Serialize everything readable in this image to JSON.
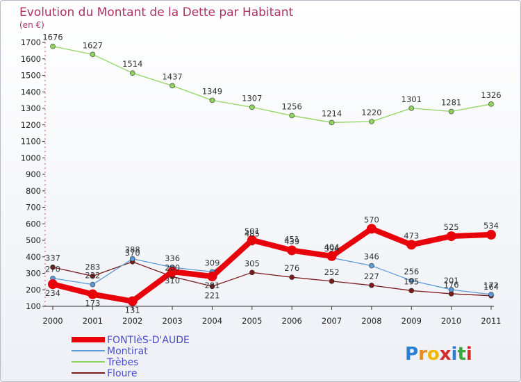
{
  "chart_data": {
    "type": "line",
    "title": "Evolution du Montant de la Dette par Habitant",
    "subtitle": "(en €)",
    "xlabel": "",
    "ylabel": "",
    "x": [
      "2000",
      "2001",
      "2002",
      "2003",
      "2004",
      "2005",
      "2006",
      "2007",
      "2008",
      "2009",
      "2010",
      "2011"
    ],
    "ylim": [
      100,
      1700
    ],
    "yticks": [
      100,
      200,
      300,
      400,
      500,
      600,
      700,
      800,
      900,
      1000,
      1100,
      1200,
      1300,
      1400,
      1500,
      1600,
      1700
    ],
    "grid": false,
    "legend_position": "bottom-left",
    "series": [
      {
        "name": "FONTIèS-D'AUDE",
        "color": "#e8000b",
        "values": [
          234,
          173,
          131,
          310,
          281,
          501,
          439,
          404,
          570,
          473,
          525,
          534
        ],
        "labels_above": [
          false,
          false,
          false,
          false,
          false,
          true,
          true,
          true,
          true,
          true,
          true,
          true
        ]
      },
      {
        "name": "Montirat",
        "color": "#5b9bd5",
        "values": [
          270,
          232,
          388,
          336,
          309,
          485,
          451,
          394,
          346,
          256,
          201,
          172
        ],
        "labels_above": [
          true,
          true,
          true,
          true,
          true,
          true,
          true,
          true,
          true,
          true,
          true,
          true
        ]
      },
      {
        "name": "Trèbes",
        "color": "#8fd460",
        "values": [
          1676,
          1627,
          1514,
          1437,
          1349,
          1307,
          1256,
          1214,
          1220,
          1301,
          1281,
          1326
        ],
        "labels_above": [
          true,
          true,
          true,
          true,
          true,
          true,
          true,
          true,
          true,
          true,
          true,
          true
        ]
      },
      {
        "name": "Floure",
        "color": "#7b1a1a",
        "values": [
          337,
          283,
          370,
          280,
          221,
          305,
          276,
          252,
          227,
          195,
          176,
          164
        ],
        "labels_above": [
          true,
          true,
          true,
          true,
          false,
          true,
          true,
          true,
          true,
          true,
          true,
          true
        ]
      }
    ]
  },
  "logo": {
    "text": "Proxiti",
    "letter_colors": [
      "#2a7fd4",
      "#e8891c",
      "#f0b800",
      "#d42a2a",
      "#2a7fd4",
      "#3aa83a",
      "#d42a2a"
    ]
  }
}
